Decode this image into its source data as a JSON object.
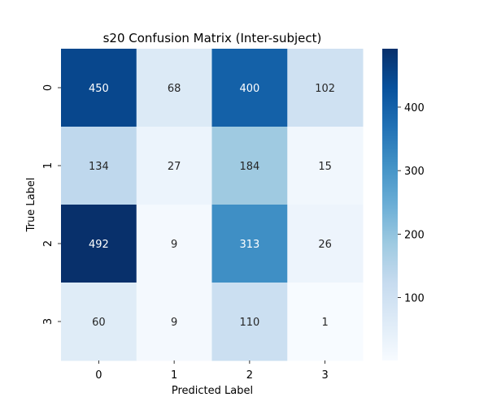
{
  "chart_data": {
    "type": "heatmap",
    "title": "s20 Confusion Matrix (Inter-subject)",
    "xlabel": "Predicted Label",
    "ylabel": "True Label",
    "x_categories": [
      "0",
      "1",
      "2",
      "3"
    ],
    "y_categories": [
      "0",
      "1",
      "2",
      "3"
    ],
    "values": [
      [
        450,
        68,
        400,
        102
      ],
      [
        134,
        27,
        184,
        15
      ],
      [
        492,
        9,
        313,
        26
      ],
      [
        60,
        9,
        110,
        1
      ]
    ],
    "colormap": "Blues",
    "color_range": [
      1,
      492
    ],
    "colorbar_ticks": [
      100,
      200,
      300,
      400
    ]
  }
}
